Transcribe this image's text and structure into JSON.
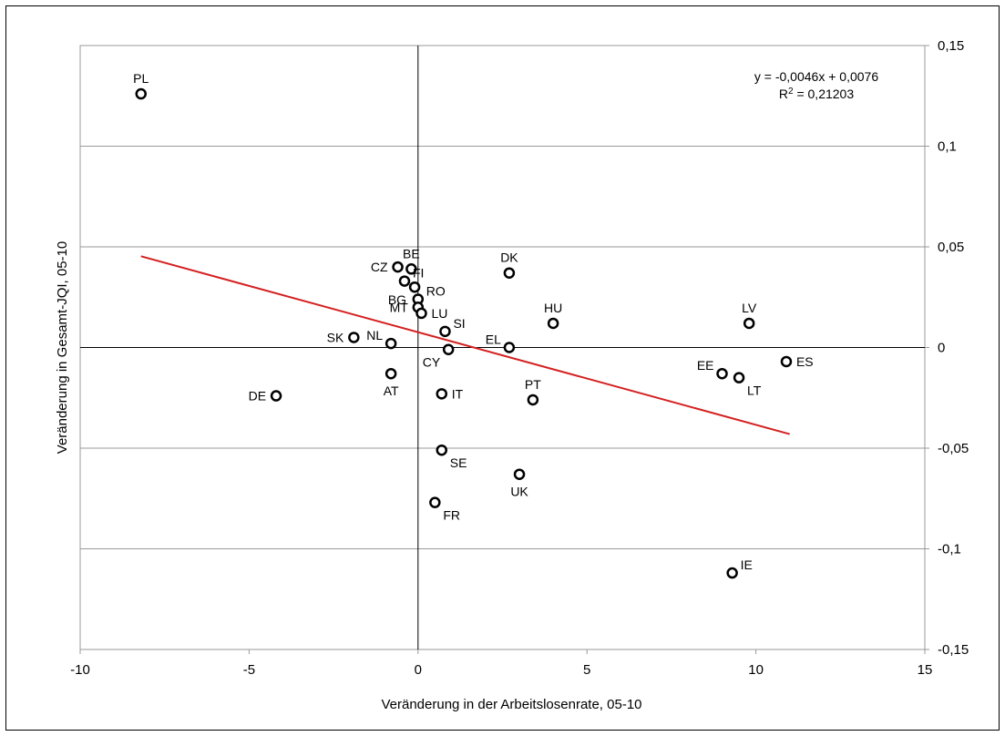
{
  "chart_data": {
    "type": "scatter",
    "xlabel": "Veränderung in der Arbeitslosenrate, 05-10",
    "ylabel": "Veränderung in Gesamt-JQI, 05-10",
    "xlim": [
      -10,
      15
    ],
    "ylim": [
      -0.15,
      0.15
    ],
    "x_ticks": [
      -10,
      -5,
      0,
      5,
      10,
      15
    ],
    "x_tick_labels": [
      "-10",
      "-5",
      "0",
      "5",
      "10",
      "15"
    ],
    "y_ticks": [
      0.15,
      0.1,
      0.05,
      0,
      -0.05,
      -0.1,
      -0.15
    ],
    "y_tick_labels": [
      "0,15",
      "0,1",
      "0,05",
      "0",
      "-0,05",
      "-0,1",
      "-0,15"
    ],
    "grid": "horizontal",
    "y_axis_position": "right",
    "trendline": {
      "slope": -0.0046,
      "intercept": 0.0076,
      "x_range": [
        -8.2,
        11
      ],
      "color": "#d42020",
      "equation": "y = -0,0046x + 0,0076",
      "r_squared_prefix": "R",
      "r_squared_exp": "2",
      "r_squared_value": " = 0,21203"
    },
    "points": [
      {
        "label": "PL",
        "x": -8.2,
        "y": 0.126,
        "pos": "above"
      },
      {
        "label": "DE",
        "x": -4.2,
        "y": -0.024,
        "pos": "left"
      },
      {
        "label": "SK",
        "x": -1.9,
        "y": 0.005,
        "pos": "left"
      },
      {
        "label": "NL",
        "x": -0.8,
        "y": 0.002,
        "pos": "upleft"
      },
      {
        "label": "AT",
        "x": -0.8,
        "y": -0.013,
        "pos": "below"
      },
      {
        "label": "CZ",
        "x": -0.6,
        "y": 0.04,
        "pos": "left"
      },
      {
        "label": "BE",
        "x": -0.2,
        "y": 0.039,
        "pos": "above"
      },
      {
        "label": "FI",
        "x": -0.4,
        "y": 0.033,
        "pos": "upright"
      },
      {
        "label": "BG",
        "x": -0.1,
        "y": 0.03,
        "pos": "downleft"
      },
      {
        "label": "RO",
        "x": 0.0,
        "y": 0.024,
        "pos": "upright"
      },
      {
        "label": "MT",
        "x": 0.0,
        "y": 0.02,
        "pos": "left"
      },
      {
        "label": "LU",
        "x": 0.1,
        "y": 0.017,
        "pos": "right"
      },
      {
        "label": "SI",
        "x": 0.8,
        "y": 0.008,
        "pos": "upright"
      },
      {
        "label": "CY",
        "x": 0.9,
        "y": -0.001,
        "pos": "downleft"
      },
      {
        "label": "IT",
        "x": 0.7,
        "y": -0.023,
        "pos": "right"
      },
      {
        "label": "SE",
        "x": 0.7,
        "y": -0.051,
        "pos": "downright"
      },
      {
        "label": "FR",
        "x": 0.5,
        "y": -0.077,
        "pos": "downright"
      },
      {
        "label": "DK",
        "x": 2.7,
        "y": 0.037,
        "pos": "above"
      },
      {
        "label": "EL",
        "x": 2.7,
        "y": 0.0,
        "pos": "upleft"
      },
      {
        "label": "UK",
        "x": 3.0,
        "y": -0.063,
        "pos": "below"
      },
      {
        "label": "PT",
        "x": 3.4,
        "y": -0.026,
        "pos": "above"
      },
      {
        "label": "HU",
        "x": 4.0,
        "y": 0.012,
        "pos": "above"
      },
      {
        "label": "EE",
        "x": 9.0,
        "y": -0.013,
        "pos": "upleft"
      },
      {
        "label": "LT",
        "x": 9.5,
        "y": -0.015,
        "pos": "downright"
      },
      {
        "label": "LV",
        "x": 9.8,
        "y": 0.012,
        "pos": "above"
      },
      {
        "label": "ES",
        "x": 10.9,
        "y": -0.007,
        "pos": "right"
      },
      {
        "label": "IE",
        "x": 9.3,
        "y": -0.112,
        "pos": "upright"
      }
    ]
  }
}
